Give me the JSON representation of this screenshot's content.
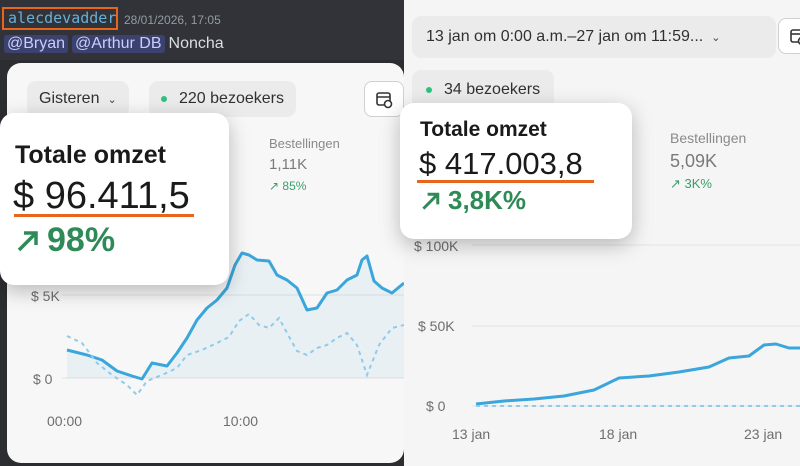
{
  "message": {
    "author": "alecdevadder",
    "timestamp": "28/01/2026, 17:05",
    "mentions": [
      "@Bryan",
      "@Arthur DB"
    ],
    "text": "Noncha"
  },
  "left_panel": {
    "period_label": "Gisteren",
    "visitors": "220 bezoekers",
    "popup": {
      "title": "Totale omzet",
      "value": "$ 96.411,5",
      "change": "98%"
    },
    "orders": {
      "label": "Bestellingen",
      "value": "1,11K",
      "change": "85%"
    },
    "y_ticks": [
      "$ 5K",
      "$ 0"
    ],
    "x_ticks": [
      "00:00",
      "10:00"
    ]
  },
  "right_panel": {
    "date_range": "13 jan om 0:00 a.m.–27 jan om 11:59...",
    "visitors": "34 bezoekers",
    "popup": {
      "title": "Totale omzet",
      "value": "$ 417.003,8",
      "change": "3,8K%"
    },
    "orders": {
      "label": "Bestellingen",
      "value": "5,09K",
      "change": "3K%"
    },
    "y_ticks": [
      "$ 100K",
      "$ 50K",
      "$ 0"
    ],
    "x_ticks": [
      "13 jan",
      "18 jan",
      "23 jan"
    ]
  },
  "colors": {
    "accent_orange": "#e8661c",
    "line_blue": "#3aa6dc",
    "positive_green": "#2e8b57",
    "visitor_dot": "#2ec27e"
  },
  "icons": [
    "caret-down-icon",
    "calendar-compare-icon",
    "arrow-up-right-icon",
    "status-dot-icon"
  ]
}
